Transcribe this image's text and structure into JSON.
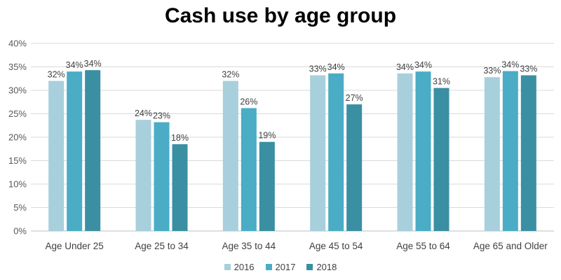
{
  "chart_data": {
    "type": "bar",
    "title": "Cash use by age group",
    "xlabel": "",
    "ylabel": "",
    "ylim": [
      0,
      40
    ],
    "y_ticks": [
      "0%",
      "5%",
      "10%",
      "15%",
      "20%",
      "25%",
      "30%",
      "35%",
      "40%"
    ],
    "grid": true,
    "legend_position": "bottom",
    "categories": [
      "Age Under 25",
      "Age 25 to 34",
      "Age 35 to 44",
      "Age 45 to 54",
      "Age 55 to 64",
      "Age 65 and Older"
    ],
    "series": [
      {
        "name": "2016",
        "color": "#a8cfdc",
        "values": [
          32,
          23.7,
          32,
          33.2,
          33.6,
          32.8
        ],
        "labels": [
          "32%",
          "24%",
          "32%",
          "33%",
          "34%",
          "33%"
        ]
      },
      {
        "name": "2017",
        "color": "#4bacc6",
        "values": [
          34,
          23.2,
          26.2,
          33.6,
          34,
          34.1
        ],
        "labels": [
          "34%",
          "23%",
          "26%",
          "34%",
          "34%",
          "34%"
        ]
      },
      {
        "name": "2018",
        "color": "#3a8fa3",
        "values": [
          34.3,
          18.5,
          19,
          27,
          30.5,
          33.2
        ],
        "labels": [
          "34%",
          "18%",
          "19%",
          "27%",
          "31%",
          "33%"
        ]
      }
    ]
  }
}
